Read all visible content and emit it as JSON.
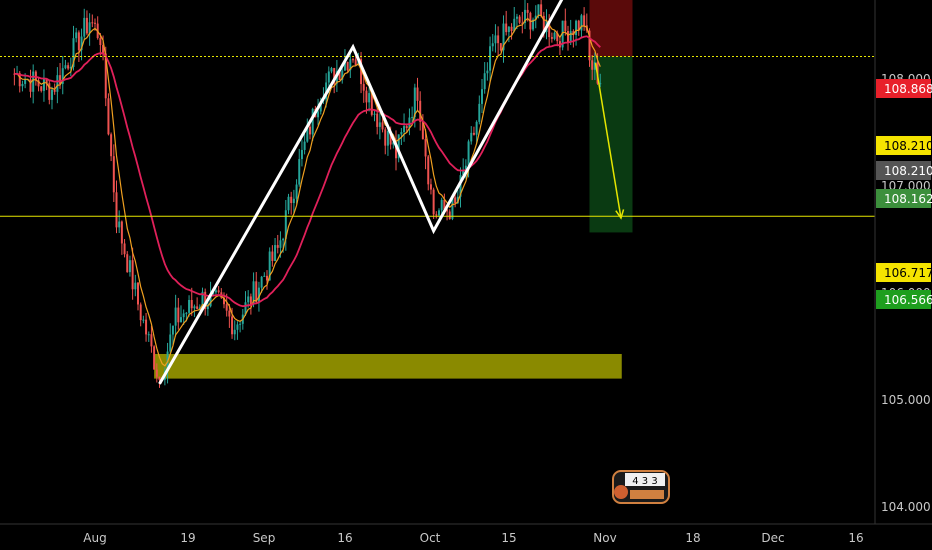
{
  "chart_data": {
    "type": "candlestick",
    "symbol_badge": "4 3 3",
    "x_ticks": [
      "Aug",
      "19",
      "Sep",
      "16",
      "Oct",
      "15",
      "Nov",
      "18",
      "Dec",
      "16"
    ],
    "y_ticks": [
      "108.000",
      "107.000",
      "106.000",
      "105.000",
      "104.000"
    ],
    "y_range": [
      104.0,
      109.0
    ],
    "grid": false,
    "price_labels": [
      {
        "value": "108.868",
        "color": "#e8202a",
        "text_color": "#ffffff"
      },
      {
        "value": "108.210",
        "color": "#f5e400",
        "text_color": "#000000"
      },
      {
        "value": "108.210",
        "color": "#555555",
        "text_color": "#ffffff"
      },
      {
        "value": "108.162",
        "color": "#3c8f3c",
        "text_color": "#ffffff"
      },
      {
        "value": "106.717",
        "color": "#f5e400",
        "text_color": "#000000"
      },
      {
        "value": "106.566",
        "color": "#1e9e1e",
        "text_color": "#ffffff"
      }
    ],
    "horizontal_lines": [
      {
        "price": 108.21,
        "color": "#e6e600",
        "style": "dotted"
      },
      {
        "price": 106.717,
        "color": "#e6e600",
        "style": "solid"
      }
    ],
    "zones": [
      {
        "name": "resistance-zone",
        "top": 109.1,
        "bottom": 108.75,
        "from": "Jul 17",
        "to": "Oct 31",
        "color": "#8a8a00"
      },
      {
        "name": "support-zone",
        "top": 105.43,
        "bottom": 105.2,
        "from": "Aug 12",
        "to": "Nov 7",
        "color": "#8a8a00"
      }
    ],
    "zigzag": {
      "color": "#ffffff",
      "points": [
        [
          "Aug 13",
          105.15
        ],
        [
          "Sep 18",
          108.3
        ],
        [
          "Oct 3",
          106.58
        ],
        [
          "Oct 31",
          109.12
        ]
      ]
    },
    "position": {
      "entry": 108.21,
      "stop": 108.868,
      "target": 106.566,
      "from": "Nov 1",
      "to": "Nov 9",
      "stop_color": "#5a0a0a",
      "target_color": "#0a3a12"
    },
    "projection_arrow": {
      "color": "#e6e600",
      "from": [
        "Nov 1",
        108.15
      ],
      "to": [
        "Nov 5",
        106.7
      ]
    },
    "ema_fast": {
      "color": "#f0a020"
    },
    "ema_slow": {
      "color": "#e0205a"
    },
    "candle_colors": {
      "up": "#26a69a",
      "down": "#ef5350"
    }
  }
}
